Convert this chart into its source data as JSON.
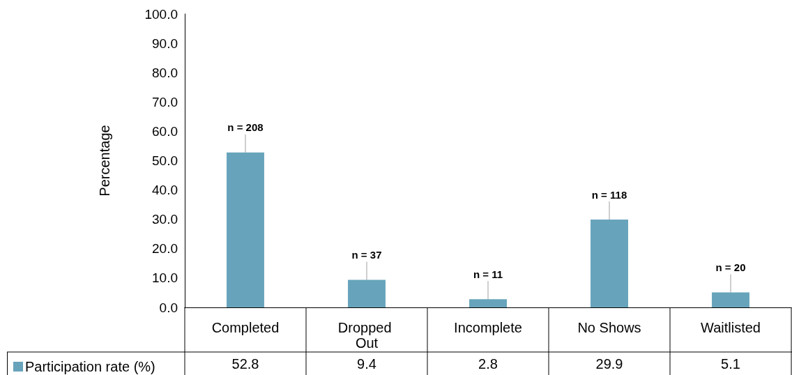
{
  "chart_data": {
    "type": "bar",
    "ylabel": "Percentage",
    "categories": [
      "Completed",
      "Dropped Out",
      "Incomplete",
      "No Shows",
      "Waitlisted"
    ],
    "series": [
      {
        "name": "Participation rate (%)",
        "color": "#67a4bb",
        "values": [
          52.8,
          9.4,
          2.8,
          29.9,
          5.1
        ]
      }
    ],
    "ylim": [
      0,
      100
    ],
    "yticks": [
      {
        "value": 0,
        "label": "0.0"
      },
      {
        "value": 10,
        "label": "10.0"
      },
      {
        "value": 20,
        "label": "20.0"
      },
      {
        "value": 30,
        "label": "30.0"
      },
      {
        "value": 40,
        "label": "40.0"
      },
      {
        "value": 50,
        "label": "50.0"
      },
      {
        "value": 60,
        "label": "60.0"
      },
      {
        "value": 70,
        "label": "70.0"
      },
      {
        "value": 80,
        "label": "80.0"
      },
      {
        "value": 90,
        "label": "90.0"
      },
      {
        "value": 100,
        "label": "100.0"
      }
    ],
    "annotations": [
      {
        "text": "n = 208",
        "x": "Completed",
        "y": 52.8
      },
      {
        "text": "n = 37",
        "x": "Dropped Out",
        "y": 9.4
      },
      {
        "text": "n = 11",
        "x": "Incomplete",
        "y": 2.8
      },
      {
        "text": "n = 118",
        "x": "No Shows",
        "y": 29.9
      },
      {
        "text": "n = 20",
        "x": "Waitlisted",
        "y": 5.1
      }
    ],
    "data_labels": true,
    "grid": false,
    "legend": "bottom left"
  }
}
